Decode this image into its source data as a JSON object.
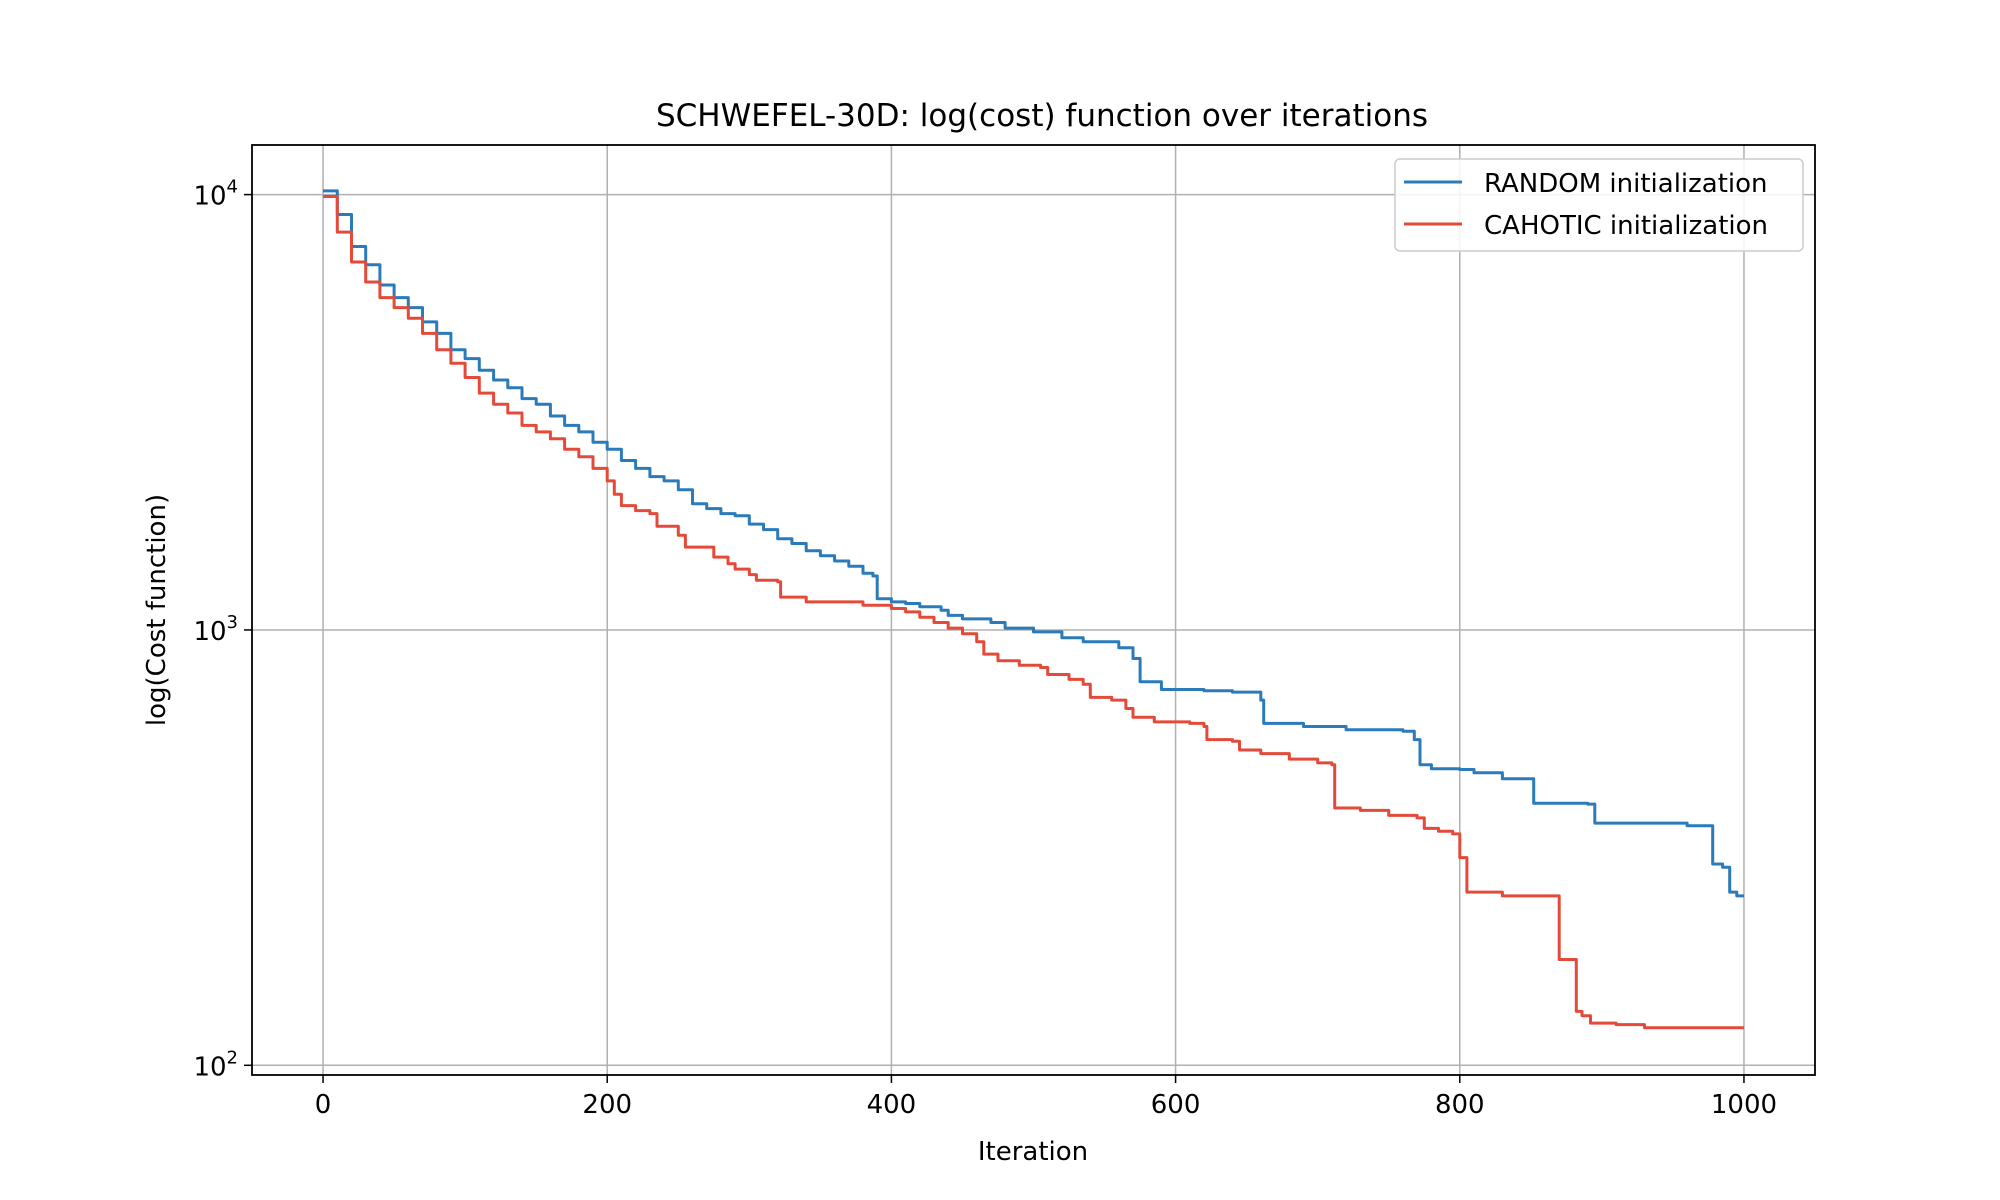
{
  "chart_data": {
    "type": "line",
    "title": "SCHWEFEL-30D: log(cost) function over iterations",
    "xlabel": "Iteration",
    "ylabel": "log(Cost function)",
    "xlim": [
      -50,
      1050
    ],
    "ylim": [
      95,
      13000
    ],
    "yscale": "log",
    "grid": true,
    "legend_position": "top-right",
    "x_ticks": [
      0,
      200,
      400,
      600,
      800,
      1000
    ],
    "y_ticks": [
      100,
      1000,
      10000
    ],
    "y_tick_labels": [
      {
        "base": "10",
        "exp": "2"
      },
      {
        "base": "10",
        "exp": "3"
      },
      {
        "base": "10",
        "exp": "4"
      }
    ],
    "series": [
      {
        "name": "RANDOM initialization",
        "color": "#2b7bba",
        "points": [
          [
            0,
            10200
          ],
          [
            10,
            9000
          ],
          [
            20,
            7600
          ],
          [
            30,
            6900
          ],
          [
            40,
            6200
          ],
          [
            50,
            5800
          ],
          [
            60,
            5500
          ],
          [
            70,
            5100
          ],
          [
            80,
            4800
          ],
          [
            90,
            4400
          ],
          [
            100,
            4200
          ],
          [
            110,
            3950
          ],
          [
            120,
            3750
          ],
          [
            130,
            3600
          ],
          [
            140,
            3400
          ],
          [
            150,
            3300
          ],
          [
            160,
            3100
          ],
          [
            170,
            2950
          ],
          [
            180,
            2850
          ],
          [
            190,
            2700
          ],
          [
            200,
            2600
          ],
          [
            210,
            2450
          ],
          [
            220,
            2350
          ],
          [
            230,
            2250
          ],
          [
            240,
            2200
          ],
          [
            250,
            2100
          ],
          [
            260,
            1950
          ],
          [
            270,
            1900
          ],
          [
            280,
            1850
          ],
          [
            290,
            1830
          ],
          [
            300,
            1750
          ],
          [
            310,
            1700
          ],
          [
            320,
            1620
          ],
          [
            330,
            1580
          ],
          [
            340,
            1520
          ],
          [
            350,
            1480
          ],
          [
            360,
            1440
          ],
          [
            370,
            1400
          ],
          [
            380,
            1350
          ],
          [
            387,
            1330
          ],
          [
            390,
            1180
          ],
          [
            400,
            1160
          ],
          [
            410,
            1150
          ],
          [
            420,
            1130
          ],
          [
            435,
            1110
          ],
          [
            440,
            1080
          ],
          [
            450,
            1060
          ],
          [
            470,
            1040
          ],
          [
            480,
            1010
          ],
          [
            500,
            990
          ],
          [
            520,
            960
          ],
          [
            535,
            940
          ],
          [
            560,
            910
          ],
          [
            570,
            860
          ],
          [
            575,
            760
          ],
          [
            590,
            730
          ],
          [
            620,
            725
          ],
          [
            640,
            720
          ],
          [
            660,
            690
          ],
          [
            662,
            610
          ],
          [
            690,
            600
          ],
          [
            720,
            590
          ],
          [
            760,
            585
          ],
          [
            768,
            560
          ],
          [
            772,
            490
          ],
          [
            780,
            480
          ],
          [
            800,
            478
          ],
          [
            810,
            470
          ],
          [
            830,
            455
          ],
          [
            850,
            455
          ],
          [
            852,
            400
          ],
          [
            870,
            400
          ],
          [
            890,
            398
          ],
          [
            895,
            360
          ],
          [
            960,
            355
          ],
          [
            976,
            355
          ],
          [
            978,
            290
          ],
          [
            985,
            285
          ],
          [
            990,
            250
          ],
          [
            995,
            245
          ],
          [
            1000,
            245
          ]
        ]
      },
      {
        "name": "CAHOTIC initialization",
        "color": "#e34a3a",
        "points": [
          [
            0,
            9900
          ],
          [
            10,
            8200
          ],
          [
            20,
            7000
          ],
          [
            30,
            6300
          ],
          [
            40,
            5800
          ],
          [
            50,
            5500
          ],
          [
            60,
            5200
          ],
          [
            70,
            4800
          ],
          [
            80,
            4400
          ],
          [
            90,
            4100
          ],
          [
            100,
            3800
          ],
          [
            110,
            3500
          ],
          [
            120,
            3300
          ],
          [
            130,
            3150
          ],
          [
            140,
            2950
          ],
          [
            150,
            2850
          ],
          [
            160,
            2750
          ],
          [
            170,
            2600
          ],
          [
            180,
            2500
          ],
          [
            190,
            2350
          ],
          [
            200,
            2200
          ],
          [
            205,
            2050
          ],
          [
            210,
            1930
          ],
          [
            220,
            1880
          ],
          [
            230,
            1850
          ],
          [
            235,
            1730
          ],
          [
            250,
            1650
          ],
          [
            255,
            1550
          ],
          [
            270,
            1550
          ],
          [
            275,
            1470
          ],
          [
            285,
            1420
          ],
          [
            290,
            1380
          ],
          [
            300,
            1340
          ],
          [
            305,
            1300
          ],
          [
            320,
            1290
          ],
          [
            322,
            1190
          ],
          [
            340,
            1160
          ],
          [
            380,
            1140
          ],
          [
            400,
            1120
          ],
          [
            410,
            1100
          ],
          [
            420,
            1070
          ],
          [
            430,
            1040
          ],
          [
            440,
            1010
          ],
          [
            450,
            980
          ],
          [
            460,
            940
          ],
          [
            465,
            880
          ],
          [
            475,
            850
          ],
          [
            490,
            830
          ],
          [
            505,
            820
          ],
          [
            510,
            790
          ],
          [
            525,
            770
          ],
          [
            535,
            750
          ],
          [
            540,
            700
          ],
          [
            555,
            690
          ],
          [
            565,
            660
          ],
          [
            570,
            630
          ],
          [
            585,
            615
          ],
          [
            610,
            610
          ],
          [
            620,
            600
          ],
          [
            622,
            560
          ],
          [
            640,
            555
          ],
          [
            645,
            530
          ],
          [
            660,
            520
          ],
          [
            680,
            505
          ],
          [
            700,
            495
          ],
          [
            710,
            490
          ],
          [
            712,
            390
          ],
          [
            730,
            385
          ],
          [
            750,
            375
          ],
          [
            770,
            370
          ],
          [
            775,
            350
          ],
          [
            785,
            345
          ],
          [
            795,
            340
          ],
          [
            800,
            300
          ],
          [
            805,
            250
          ],
          [
            820,
            250
          ],
          [
            830,
            245
          ],
          [
            860,
            245
          ],
          [
            868,
            245
          ],
          [
            870,
            175
          ],
          [
            880,
            175
          ],
          [
            882,
            133
          ],
          [
            886,
            130
          ],
          [
            892,
            125
          ],
          [
            910,
            124
          ],
          [
            930,
            122
          ],
          [
            1000,
            122
          ]
        ]
      }
    ]
  }
}
